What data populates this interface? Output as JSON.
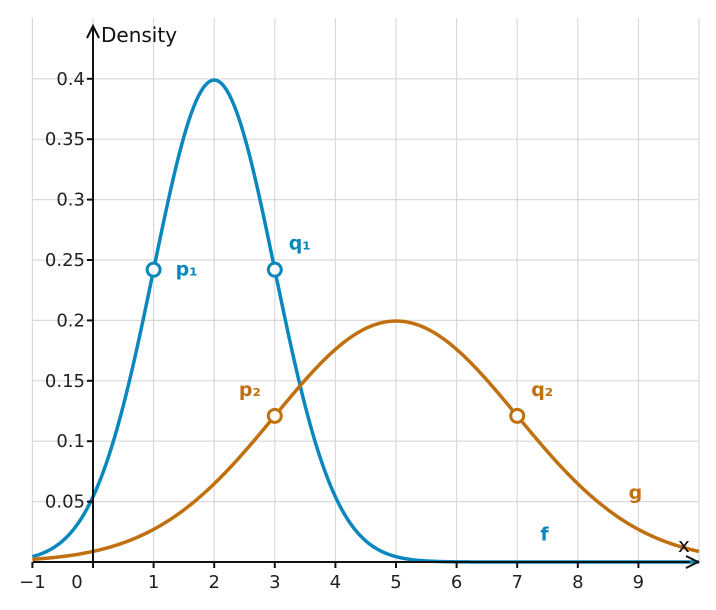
{
  "chart_data": {
    "type": "line",
    "ylabel": "Density",
    "xlabel": "x",
    "xlim": [
      -1,
      10
    ],
    "ylim": [
      0,
      0.44
    ],
    "grid": true,
    "x_ticks": [
      -1,
      0,
      1,
      2,
      3,
      4,
      5,
      6,
      7,
      8,
      9
    ],
    "x_tick_labels": [
      "−1",
      "0",
      "1",
      "2",
      "3",
      "4",
      "5",
      "6",
      "7",
      "8",
      "9"
    ],
    "y_ticks": [
      0.05,
      0.1,
      0.15,
      0.2,
      0.25,
      0.3,
      0.35,
      0.4
    ],
    "y_tick_labels": [
      "0.05",
      "0.1",
      "0.15",
      "0.2",
      "0.25",
      "0.3",
      "0.35",
      "0.4"
    ],
    "series": [
      {
        "name": "f",
        "color": "#0a88bd",
        "x": [
          -1,
          -0.5,
          0,
          0.5,
          1,
          1.5,
          2,
          2.5,
          3,
          3.5,
          4,
          4.5,
          5,
          5.5,
          6,
          7,
          8,
          9,
          10
        ],
        "y": [
          0.004,
          0.018,
          0.054,
          0.13,
          0.242,
          0.352,
          0.399,
          0.352,
          0.242,
          0.13,
          0.054,
          0.018,
          0.004,
          0.001,
          0.0001,
          0,
          0,
          0,
          0
        ]
      },
      {
        "name": "g",
        "color": "#c0700e",
        "x": [
          -1,
          0,
          1,
          2,
          3,
          4,
          5,
          6,
          7,
          8,
          9,
          10
        ],
        "y": [
          0.0022,
          0.0088,
          0.027,
          0.065,
          0.121,
          0.176,
          0.199,
          0.176,
          0.121,
          0.065,
          0.027,
          0.0088
        ]
      }
    ],
    "points": [
      {
        "label": "p₁",
        "series": "f",
        "x": 1,
        "y": 0.242
      },
      {
        "label": "q₁",
        "series": "f",
        "x": 3,
        "y": 0.242
      },
      {
        "label": "p₂",
        "series": "g",
        "x": 3,
        "y": 0.121
      },
      {
        "label": "q₂",
        "series": "g",
        "x": 7,
        "y": 0.121
      }
    ]
  }
}
